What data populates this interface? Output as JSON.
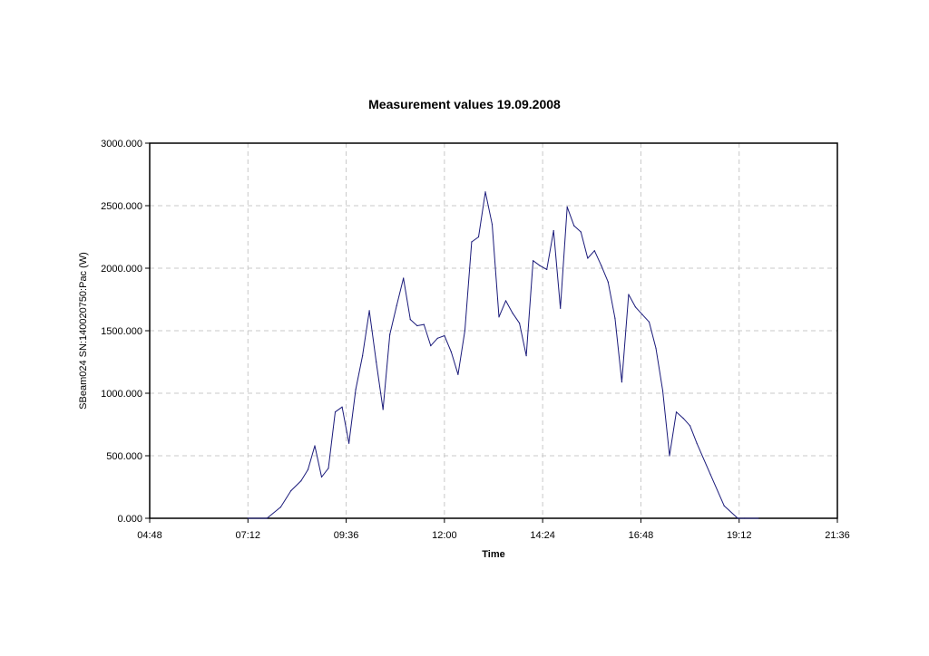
{
  "chart_data": {
    "type": "line",
    "title": "Measurement values 19.09.2008",
    "xlabel": "Time",
    "ylabel": "SBeam024 SN:140020750:Pac (W)",
    "xlim": [
      "04:48",
      "21:36"
    ],
    "ylim": [
      0,
      3000
    ],
    "x_ticks": [
      "04:48",
      "07:12",
      "09:36",
      "12:00",
      "14:24",
      "16:48",
      "19:12",
      "21:36"
    ],
    "y_ticks": [
      "0.000",
      "500.000",
      "1000.000",
      "1500.000",
      "2000.000",
      "2500.000",
      "3000.000"
    ],
    "grid": true,
    "line_color": "#1a1a7a",
    "series": [
      {
        "x": [
          "07:12",
          "07:40",
          "08:00",
          "08:15",
          "08:30",
          "08:40",
          "08:50",
          "09:00",
          "09:10",
          "09:20",
          "09:30",
          "09:40",
          "09:50",
          "10:00",
          "10:10",
          "10:20",
          "10:30",
          "10:40",
          "10:50",
          "11:00",
          "11:10",
          "11:20",
          "11:30",
          "11:40",
          "11:50",
          "12:00",
          "12:10",
          "12:20",
          "12:30",
          "12:40",
          "12:50",
          "13:00",
          "13:10",
          "13:20",
          "13:30",
          "13:40",
          "13:50",
          "14:00",
          "14:10",
          "14:20",
          "14:30",
          "14:40",
          "14:50",
          "15:00",
          "15:10",
          "15:20",
          "15:30",
          "15:40",
          "15:50",
          "16:00",
          "16:10",
          "16:20",
          "16:30",
          "16:40",
          "16:50",
          "17:00",
          "17:10",
          "17:20",
          "17:30",
          "17:40",
          "17:50",
          "18:00",
          "18:10",
          "18:30",
          "18:50",
          "19:10",
          "19:20",
          "19:40"
        ],
        "values": [
          0,
          0,
          90,
          220,
          300,
          390,
          580,
          330,
          400,
          850,
          890,
          600,
          1030,
          1300,
          1660,
          1250,
          870,
          1470,
          1700,
          1920,
          1590,
          1540,
          1550,
          1380,
          1440,
          1460,
          1330,
          1150,
          1500,
          2210,
          2250,
          2610,
          2350,
          1610,
          1740,
          1640,
          1560,
          1300,
          2060,
          2020,
          1990,
          2300,
          1680,
          2490,
          2340,
          2290,
          2080,
          2140,
          2020,
          1890,
          1600,
          1090,
          1790,
          1690,
          1630,
          1570,
          1360,
          1020,
          500,
          850,
          800,
          740,
          600,
          350,
          100,
          0,
          0,
          0
        ]
      }
    ]
  }
}
